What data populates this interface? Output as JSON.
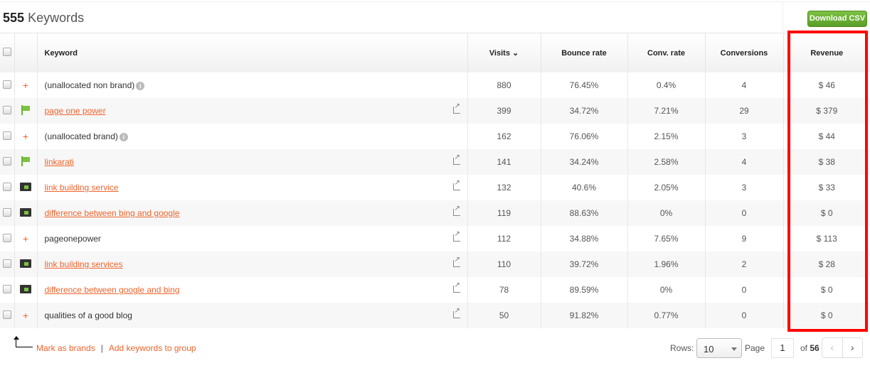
{
  "header": {
    "count": "555",
    "title": "Keywords",
    "download_label": "Download CSV"
  },
  "columns": {
    "keyword": "Keyword",
    "visits": "Visits ⌄",
    "bounce": "Bounce rate",
    "conv_rate": "Conv. rate",
    "conversions": "Conversions",
    "revenue": "Revenue"
  },
  "rows": [
    {
      "icon": "plus",
      "keyword": "(unallocated non brand)",
      "link": false,
      "info": true,
      "ext": false,
      "visits": "880",
      "bounce": "76.45%",
      "conv_rate": "0.4%",
      "conversions": "4",
      "revenue": "$ 46"
    },
    {
      "icon": "flag",
      "keyword": "page one power",
      "link": true,
      "info": false,
      "ext": true,
      "visits": "399",
      "bounce": "34.72%",
      "conv_rate": "7.21%",
      "conversions": "29",
      "revenue": "$ 379"
    },
    {
      "icon": "plus",
      "keyword": "(unallocated brand)",
      "link": false,
      "info": true,
      "ext": false,
      "visits": "162",
      "bounce": "76.06%",
      "conv_rate": "2.15%",
      "conversions": "3",
      "revenue": "$ 44"
    },
    {
      "icon": "flag",
      "keyword": "linkarati",
      "link": true,
      "info": false,
      "ext": true,
      "visits": "141",
      "bounce": "34.24%",
      "conv_rate": "2.58%",
      "conversions": "4",
      "revenue": "$ 38"
    },
    {
      "icon": "folder",
      "keyword": "link building service",
      "link": true,
      "info": false,
      "ext": true,
      "visits": "132",
      "bounce": "40.6%",
      "conv_rate": "2.05%",
      "conversions": "3",
      "revenue": "$ 33"
    },
    {
      "icon": "folder",
      "keyword": "difference between bing and google",
      "link": true,
      "info": false,
      "ext": true,
      "visits": "119",
      "bounce": "88.63%",
      "conv_rate": "0%",
      "conversions": "0",
      "revenue": "$ 0"
    },
    {
      "icon": "plus",
      "keyword": "pageonepower",
      "link": false,
      "info": false,
      "ext": true,
      "visits": "112",
      "bounce": "34.88%",
      "conv_rate": "7.65%",
      "conversions": "9",
      "revenue": "$ 113"
    },
    {
      "icon": "folder",
      "keyword": "link building services",
      "link": true,
      "info": false,
      "ext": true,
      "visits": "110",
      "bounce": "39.72%",
      "conv_rate": "1.96%",
      "conversions": "2",
      "revenue": "$ 28"
    },
    {
      "icon": "folder",
      "keyword": "difference between google and bing",
      "link": true,
      "info": false,
      "ext": true,
      "visits": "78",
      "bounce": "89.59%",
      "conv_rate": "0%",
      "conversions": "0",
      "revenue": "$ 0"
    },
    {
      "icon": "plus",
      "keyword": "qualities of a good blog",
      "link": false,
      "info": false,
      "ext": true,
      "visits": "50",
      "bounce": "91.82%",
      "conv_rate": "0.77%",
      "conversions": "0",
      "revenue": "$ 0"
    }
  ],
  "footer": {
    "mark_brands": "Mark as brands",
    "separator": "|",
    "add_group": "Add keywords to group",
    "rows_label": "Rows:",
    "rows_value": "10",
    "page_label": "Page",
    "page_value": "1",
    "of_label": "of",
    "total_pages": "56",
    "prev": "‹",
    "next": "›"
  },
  "colors": {
    "accent": "#f0642d",
    "highlight": "#ff0000",
    "button": "#6ab530"
  }
}
